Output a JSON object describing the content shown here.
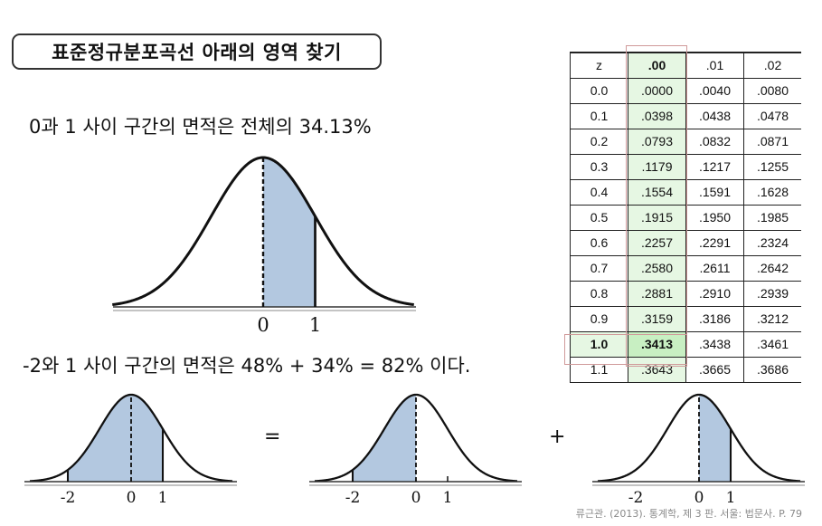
{
  "title": "표준정규분포곡선 아래의 영역 찾기",
  "statement1": "0과 1 사이 구간의 면적은 전체의 34.13%",
  "statement2": "-2와 1 사이 구간의 면적은 48% + 34% = 82% 이다.",
  "operators": {
    "equals": "=",
    "plus": "+"
  },
  "curve_main": {
    "ticks": [
      "0",
      "1"
    ],
    "shaded_from": 0,
    "shaded_to": 1
  },
  "curve_total": {
    "ticks": [
      "-2",
      "0",
      "1"
    ],
    "shaded_from": -2,
    "shaded_to": 1
  },
  "curve_left": {
    "ticks": [
      "-2",
      "0",
      "1"
    ],
    "shaded_from": -2,
    "shaded_to": 0
  },
  "curve_right": {
    "ticks": [
      "-2",
      "0",
      "1"
    ],
    "shaded_from": 0,
    "shaded_to": 1
  },
  "colors": {
    "shade": "#b3c8e0",
    "curve": "#111111",
    "highlight_green": "#e6f7e3",
    "highlight_border": "#d09a9a"
  },
  "ztable": {
    "headers": [
      "z",
      ".00",
      ".01",
      ".02"
    ],
    "rows": [
      [
        "0.0",
        ".0000",
        ".0040",
        ".0080"
      ],
      [
        "0.1",
        ".0398",
        ".0438",
        ".0478"
      ],
      [
        "0.2",
        ".0793",
        ".0832",
        ".0871"
      ],
      [
        "0.3",
        ".1179",
        ".1217",
        ".1255"
      ],
      [
        "0.4",
        ".1554",
        ".1591",
        ".1628"
      ],
      [
        "0.5",
        ".1915",
        ".1950",
        ".1985"
      ],
      [
        "0.6",
        ".2257",
        ".2291",
        ".2324"
      ],
      [
        "0.7",
        ".2580",
        ".2611",
        ".2642"
      ],
      [
        "0.8",
        ".2881",
        ".2910",
        ".2939"
      ],
      [
        "0.9",
        ".3159",
        ".3186",
        ".3212"
      ],
      [
        "1.0",
        ".3413",
        ".3438",
        ".3461"
      ],
      [
        "1.1",
        ".3643",
        ".3665",
        ".3686"
      ]
    ],
    "highlight_row": "1.0",
    "highlight_col": ".00"
  },
  "citation": "류근관. (2013). 통계학, 제 3 판. 서울: 법문사. P. 79"
}
